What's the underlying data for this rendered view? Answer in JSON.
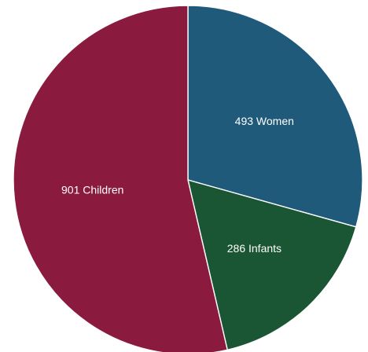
{
  "chart_data": {
    "type": "pie",
    "start_position": "top",
    "direction": "clockwise",
    "slices": [
      {
        "label": "493 Women",
        "value": 493,
        "color": "#1f5a7a"
      },
      {
        "label": "286 Infants",
        "value": 286,
        "color": "#1a5534"
      },
      {
        "label": "901 Children",
        "value": 901,
        "color": "#8a1a3e"
      }
    ]
  }
}
